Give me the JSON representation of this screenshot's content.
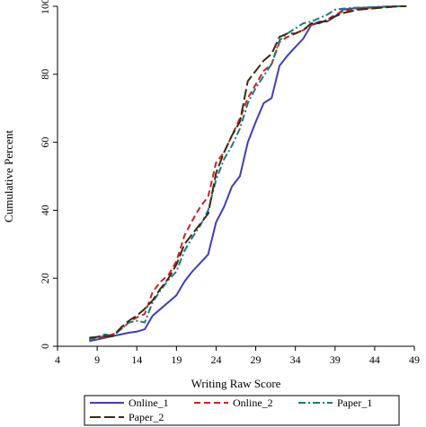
{
  "chart_data": {
    "type": "line",
    "xlabel": "Writing Raw Score",
    "ylabel": "Cumulative Percent",
    "xlim": [
      4,
      49
    ],
    "ylim": [
      0,
      100
    ],
    "xticks": [
      4,
      9,
      14,
      19,
      24,
      29,
      34,
      39,
      44,
      49
    ],
    "yticks": [
      0,
      20,
      40,
      60,
      80,
      100
    ],
    "grid": false,
    "legend_position": "bottom",
    "series": [
      {
        "name": "Online_1",
        "color": "#3f3fb5",
        "dash": "solid",
        "points": [
          [
            8,
            1.5
          ],
          [
            10,
            2.5
          ],
          [
            11,
            3
          ],
          [
            12,
            3.5
          ],
          [
            13,
            4
          ],
          [
            14,
            4.3
          ],
          [
            15,
            5
          ],
          [
            16,
            9
          ],
          [
            17,
            11
          ],
          [
            18,
            13
          ],
          [
            19,
            15
          ],
          [
            20,
            19
          ],
          [
            21,
            22
          ],
          [
            22,
            24.5
          ],
          [
            23,
            27
          ],
          [
            24,
            36.5
          ],
          [
            25,
            41
          ],
          [
            26,
            47
          ],
          [
            27,
            50
          ],
          [
            28,
            60
          ],
          [
            29,
            66
          ],
          [
            30,
            71.5
          ],
          [
            31,
            73
          ],
          [
            32,
            82.5
          ],
          [
            33,
            85.5
          ],
          [
            34,
            88
          ],
          [
            35,
            90.5
          ],
          [
            36,
            94.5
          ],
          [
            37,
            95.5
          ],
          [
            38,
            95.5
          ],
          [
            39,
            97
          ],
          [
            40,
            99
          ],
          [
            41,
            99.3
          ],
          [
            42,
            99.5
          ],
          [
            43,
            99.6
          ],
          [
            44,
            99.7
          ],
          [
            45,
            99.8
          ],
          [
            46,
            99.9
          ],
          [
            47,
            100
          ],
          [
            48,
            100
          ]
        ]
      },
      {
        "name": "Online_2",
        "color": "#cc2222",
        "dash": "dash",
        "points": [
          [
            8,
            2
          ],
          [
            10,
            3
          ],
          [
            11,
            3.5
          ],
          [
            12,
            5
          ],
          [
            13,
            7
          ],
          [
            14,
            8.5
          ],
          [
            15,
            9.5
          ],
          [
            16,
            16
          ],
          [
            17,
            19
          ],
          [
            18,
            21
          ],
          [
            19,
            25
          ],
          [
            20,
            32.5
          ],
          [
            21,
            37
          ],
          [
            22,
            41
          ],
          [
            23,
            44
          ],
          [
            24,
            54
          ],
          [
            25,
            57
          ],
          [
            26,
            62
          ],
          [
            27,
            67
          ],
          [
            28,
            73
          ],
          [
            29,
            77
          ],
          [
            30,
            81
          ],
          [
            31,
            83
          ],
          [
            32,
            89.5
          ],
          [
            33,
            91
          ],
          [
            34,
            92
          ],
          [
            35,
            93
          ],
          [
            36,
            94.5
          ],
          [
            37,
            95
          ],
          [
            38,
            96
          ],
          [
            39,
            97.5
          ],
          [
            40,
            98.5
          ],
          [
            41,
            99
          ],
          [
            42,
            99.3
          ],
          [
            43,
            99.5
          ],
          [
            44,
            99.6
          ],
          [
            45,
            99.7
          ],
          [
            46,
            99.8
          ],
          [
            47,
            100
          ],
          [
            48,
            100
          ]
        ]
      },
      {
        "name": "Paper_1",
        "color": "#1a7a7a",
        "dash": "dashdot",
        "points": [
          [
            8,
            2
          ],
          [
            10,
            3.5
          ],
          [
            11,
            3
          ],
          [
            12,
            5
          ],
          [
            13,
            7
          ],
          [
            14,
            7.5
          ],
          [
            15,
            7
          ],
          [
            16,
            13
          ],
          [
            17,
            16.5
          ],
          [
            18,
            19.5
          ],
          [
            19,
            22
          ],
          [
            20,
            28
          ],
          [
            21,
            32
          ],
          [
            22,
            35.5
          ],
          [
            23,
            40
          ],
          [
            24,
            49
          ],
          [
            25,
            55
          ],
          [
            26,
            59
          ],
          [
            27,
            64
          ],
          [
            28,
            71.5
          ],
          [
            29,
            76
          ],
          [
            30,
            79.5
          ],
          [
            31,
            83
          ],
          [
            32,
            90
          ],
          [
            33,
            92
          ],
          [
            34,
            93.5
          ],
          [
            35,
            95
          ],
          [
            36,
            95.5
          ],
          [
            37,
            96.5
          ],
          [
            38,
            97.5
          ],
          [
            39,
            99
          ],
          [
            40,
            99.3
          ],
          [
            41,
            99.5
          ],
          [
            42,
            99.6
          ],
          [
            43,
            99.7
          ],
          [
            44,
            99.8
          ],
          [
            45,
            99.9
          ],
          [
            46,
            100
          ],
          [
            47,
            100
          ],
          [
            48,
            100
          ]
        ]
      },
      {
        "name": "Paper_2",
        "color": "#3d2a14",
        "dash": "longdash",
        "points": [
          [
            8,
            2.5
          ],
          [
            10,
            3
          ],
          [
            11,
            3
          ],
          [
            12,
            5.5
          ],
          [
            13,
            7.5
          ],
          [
            14,
            9
          ],
          [
            15,
            11
          ],
          [
            16,
            13.5
          ],
          [
            17,
            17
          ],
          [
            18,
            20
          ],
          [
            19,
            24
          ],
          [
            20,
            30
          ],
          [
            21,
            33
          ],
          [
            22,
            36
          ],
          [
            23,
            39
          ],
          [
            24,
            51
          ],
          [
            25,
            57
          ],
          [
            26,
            62
          ],
          [
            27,
            66
          ],
          [
            28,
            78
          ],
          [
            29,
            81
          ],
          [
            30,
            84
          ],
          [
            31,
            86
          ],
          [
            32,
            91
          ],
          [
            33,
            92
          ],
          [
            34,
            92
          ],
          [
            35,
            93
          ],
          [
            36,
            95
          ],
          [
            37,
            95
          ],
          [
            38,
            96
          ],
          [
            39,
            97
          ],
          [
            40,
            98
          ],
          [
            41,
            98.5
          ],
          [
            42,
            99
          ],
          [
            43,
            99.2
          ],
          [
            44,
            99.4
          ],
          [
            45,
            99.6
          ],
          [
            46,
            99.8
          ],
          [
            47,
            100
          ],
          [
            48,
            100
          ]
        ]
      }
    ]
  }
}
